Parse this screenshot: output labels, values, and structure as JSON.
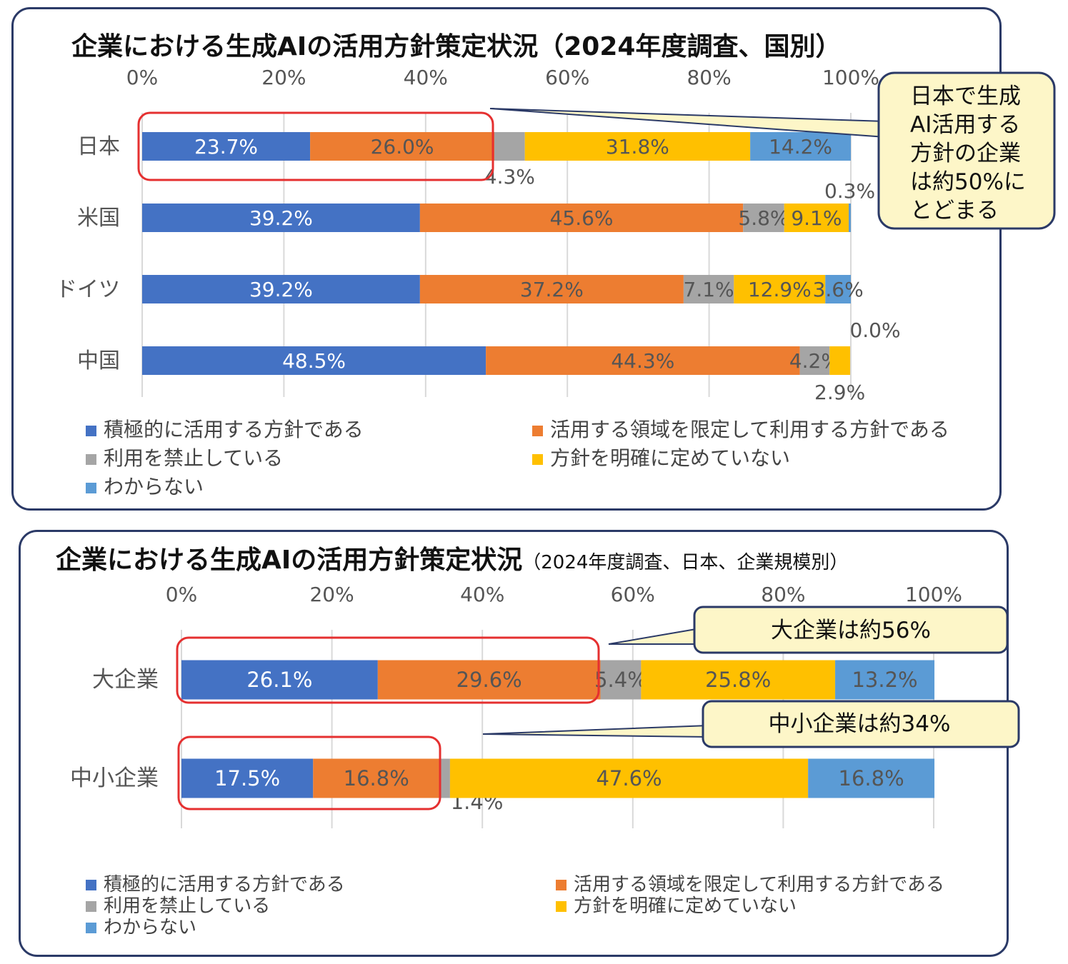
{
  "colors": {
    "series": [
      "#4472c4",
      "#ed7d31",
      "#a5a5a5",
      "#ffc000",
      "#5b9bd5"
    ],
    "highlight": "#e53030",
    "callout_fill": "#fdf6c8",
    "panel_border": "#2b3a67"
  },
  "legend": [
    "積極的に活用する方針である",
    "活用する領域を限定して利用する方針である",
    "利用を禁止している",
    "方針を明確に定めていない",
    "わからない"
  ],
  "chart_data": [
    {
      "type": "bar",
      "orientation": "horizontal",
      "stacked": true,
      "title": "企業における生成AIの活用方針策定状況（2024年度調査、国別）",
      "subtitle": "",
      "categories": [
        "日本",
        "米国",
        "ドイツ",
        "中国"
      ],
      "xlim": [
        0,
        100
      ],
      "x_ticks": [
        "0%",
        "20%",
        "40%",
        "60%",
        "80%",
        "100%"
      ],
      "series": [
        {
          "name": "積極的に活用する方針である",
          "values": [
            23.7,
            39.2,
            39.2,
            48.5
          ]
        },
        {
          "name": "活用する領域を限定して利用する方針である",
          "values": [
            26.0,
            45.6,
            37.2,
            44.3
          ]
        },
        {
          "name": "利用を禁止している",
          "values": [
            4.3,
            5.8,
            7.1,
            4.2
          ]
        },
        {
          "name": "方針を明確に定めていない",
          "values": [
            31.8,
            9.1,
            12.9,
            2.9
          ]
        },
        {
          "name": "わからない",
          "values": [
            14.2,
            0.3,
            3.6,
            0.0
          ]
        }
      ],
      "data_labels": [
        [
          "23.7%",
          "26.0%",
          "4.3%",
          "31.8%",
          "14.2%"
        ],
        [
          "39.2%",
          "45.6%",
          "5.8%",
          "9.1%",
          "0.3%"
        ],
        [
          "39.2%",
          "37.2%",
          "7.1%",
          "12.9%",
          "3.6%"
        ],
        [
          "48.5%",
          "44.3%",
          "4.2%",
          "2.9%",
          "0.0%"
        ]
      ],
      "callout": "日本で生成\nAI活用する\n方針の企業\nは約50%に\nとどまる",
      "grid": true,
      "legend_position": "bottom"
    },
    {
      "type": "bar",
      "orientation": "horizontal",
      "stacked": true,
      "title": "企業における生成AIの活用方針策定状況",
      "subtitle": "（2024年度調査、日本、企業規模別）",
      "categories": [
        "大企業",
        "中小企業"
      ],
      "xlim": [
        0,
        100
      ],
      "x_ticks": [
        "0%",
        "20%",
        "40%",
        "60%",
        "80%",
        "100%"
      ],
      "series": [
        {
          "name": "積極的に活用する方針である",
          "values": [
            26.1,
            17.5
          ]
        },
        {
          "name": "活用する領域を限定して利用する方針である",
          "values": [
            29.6,
            16.8
          ]
        },
        {
          "name": "利用を禁止している",
          "values": [
            5.4,
            1.4
          ]
        },
        {
          "name": "方針を明確に定めていない",
          "values": [
            25.8,
            47.6
          ]
        },
        {
          "name": "わからない",
          "values": [
            13.2,
            16.8
          ]
        }
      ],
      "data_labels": [
        [
          "26.1%",
          "29.6%",
          "5.4%",
          "25.8%",
          "13.2%"
        ],
        [
          "17.5%",
          "16.8%",
          "1.4%",
          "47.6%",
          "16.8%"
        ]
      ],
      "callouts": [
        "大企業は約56%",
        "中小企業は約34%"
      ],
      "grid": true,
      "legend_position": "bottom"
    }
  ]
}
